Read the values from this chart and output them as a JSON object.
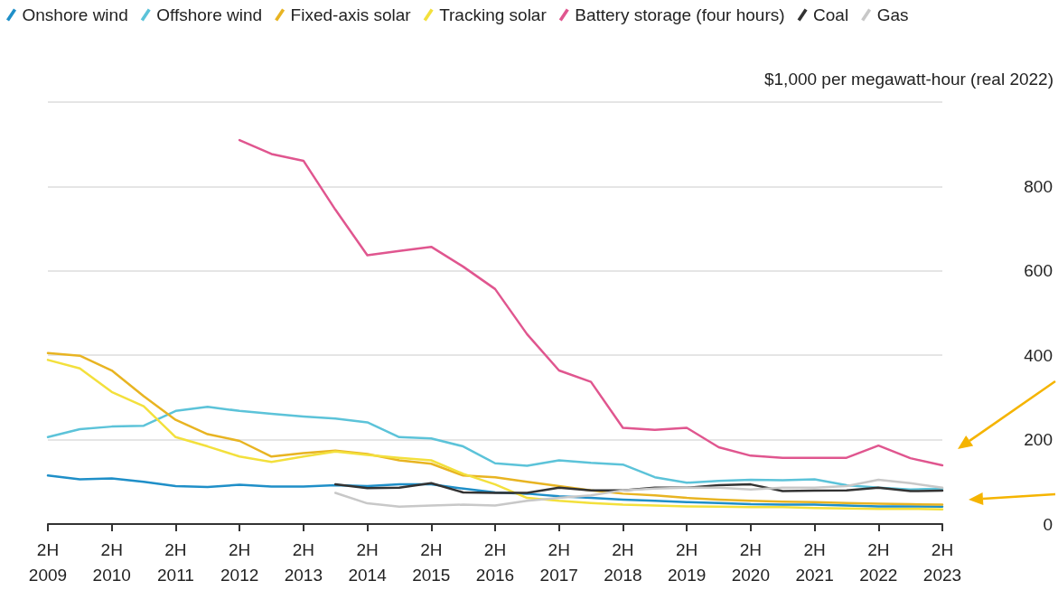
{
  "chart_data": {
    "type": "line",
    "ylabel": "$1,000 per megawatt-hour (real 2022)",
    "categories": [
      "2H 2009",
      null,
      "2H 2010",
      null,
      "2H 2011",
      null,
      "2H 2012",
      null,
      "2H 2013",
      null,
      "2H 2014",
      null,
      "2H 2015",
      null,
      "2H 2016",
      null,
      "2H 2017",
      null,
      "2H 2018",
      null,
      "2H 2019",
      null,
      "2H 2020",
      null,
      "2H 2021",
      null,
      "2H 2022",
      null,
      "2H 2023"
    ],
    "series": [
      {
        "name": "Onshore wind",
        "color": "#1f8fc8",
        "values": [
          115,
          106,
          108,
          100,
          90,
          88,
          93,
          89,
          89,
          92,
          90,
          94,
          94,
          84,
          75,
          72,
          66,
          62,
          58,
          55,
          52,
          50,
          47,
          46,
          46,
          44,
          42,
          42,
          41
        ]
      },
      {
        "name": "Offshore wind",
        "color": "#5cc3d9",
        "values": [
          206,
          225,
          231,
          233,
          268,
          278,
          268,
          261,
          255,
          250,
          241,
          206,
          203,
          184,
          144,
          138,
          151,
          145,
          141,
          111,
          98,
          102,
          105,
          104,
          106,
          92,
          86,
          82,
          84
        ]
      },
      {
        "name": "Fixed-axis solar",
        "color": "#e8b422",
        "values": [
          405,
          399,
          364,
          303,
          247,
          213,
          197,
          160,
          168,
          174,
          166,
          151,
          143,
          115,
          111,
          100,
          90,
          80,
          72,
          68,
          62,
          58,
          55,
          53,
          52,
          50,
          48,
          47,
          46
        ]
      },
      {
        "name": "Tracking solar",
        "color": "#f3e03c",
        "values": [
          389,
          369,
          313,
          279,
          206,
          184,
          160,
          147,
          160,
          172,
          164,
          157,
          151,
          119,
          94,
          62,
          55,
          50,
          46,
          44,
          42,
          41,
          40,
          40,
          38,
          37,
          36,
          36,
          35
        ]
      },
      {
        "name": "Battery storage (four hours)",
        "color": "#e0568f",
        "values": [
          null,
          null,
          null,
          null,
          null,
          null,
          910,
          877,
          861,
          745,
          637,
          647,
          657,
          610,
          557,
          450,
          364,
          337,
          228,
          223,
          228,
          182,
          162,
          157,
          157,
          157,
          186,
          156,
          139
        ]
      },
      {
        "name": "Coal",
        "color": "#333333",
        "values": [
          null,
          null,
          null,
          null,
          null,
          null,
          null,
          null,
          null,
          94,
          85,
          86,
          97,
          75,
          74,
          74,
          86,
          80,
          80,
          86,
          86,
          92,
          94,
          78,
          79,
          80,
          86,
          78,
          79
        ]
      },
      {
        "name": "Gas",
        "color": "#c8c8c8",
        "values": [
          null,
          null,
          null,
          null,
          null,
          null,
          null,
          null,
          null,
          74,
          49,
          41,
          44,
          46,
          44,
          55,
          62,
          68,
          80,
          84,
          86,
          86,
          82,
          86,
          86,
          90,
          105,
          97,
          86
        ]
      }
    ],
    "ylim": [
      0,
      1000
    ],
    "yticks": [
      0,
      200,
      400,
      600,
      800,
      {
        "value": 1000,
        "label": null
      }
    ],
    "grid": "y",
    "legend": "top left",
    "marker": "none",
    "line_style": "solid"
  }
}
